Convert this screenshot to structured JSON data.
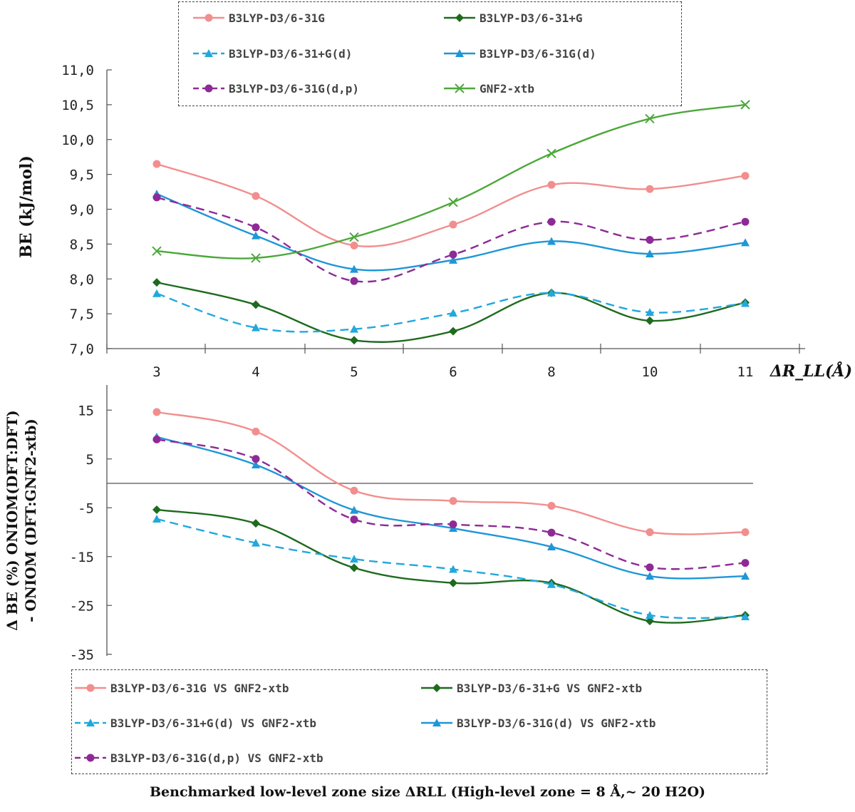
{
  "chart_data": [
    {
      "type": "line",
      "categories": [
        "3",
        "4",
        "5",
        "6",
        "8",
        "10",
        "11"
      ],
      "ylabel": "BE (kJ/mol)",
      "xlabel": "ΔR_LL(Å)",
      "ylim": [
        7.0,
        11.0
      ],
      "yticks": [
        "7,0",
        "7,5",
        "8,0",
        "8,5",
        "9,0",
        "9,5",
        "10,0",
        "10,5",
        "11,0"
      ],
      "legend_position": "top-center",
      "series": [
        {
          "name": "B3LYP-D3/6-31G",
          "color": "#f28e8e",
          "marker": "circle",
          "dash": false,
          "values": [
            9.65,
            9.19,
            8.48,
            8.78,
            9.35,
            9.29,
            9.48
          ]
        },
        {
          "name": "B3LYP-D3/6-31+G",
          "color": "#1e6b1e",
          "marker": "diamond",
          "dash": false,
          "values": [
            7.95,
            7.63,
            7.12,
            7.25,
            7.8,
            7.4,
            7.66
          ]
        },
        {
          "name": "B3LYP-D3/6-31+G(d)",
          "color": "#22a8dc",
          "marker": "triangle",
          "dash": true,
          "values": [
            7.79,
            7.3,
            7.28,
            7.51,
            7.8,
            7.52,
            7.65
          ]
        },
        {
          "name": "B3LYP-D3/6-31G(d)",
          "color": "#1e96d8",
          "marker": "triangle",
          "dash": false,
          "values": [
            9.22,
            8.62,
            8.14,
            8.27,
            8.54,
            8.36,
            8.52
          ]
        },
        {
          "name": "B3LYP-D3/6-31G(d,p)",
          "color": "#8e2a96",
          "marker": "circle",
          "dash": true,
          "values": [
            9.17,
            8.74,
            7.97,
            8.35,
            8.82,
            8.56,
            8.82
          ]
        },
        {
          "name": "GNF2-xtb",
          "color": "#4ca83a",
          "marker": "x",
          "dash": false,
          "values": [
            8.4,
            8.3,
            8.6,
            9.1,
            9.8,
            10.3,
            10.5
          ]
        }
      ]
    },
    {
      "type": "line",
      "categories": [
        "3",
        "4",
        "5",
        "6",
        "8",
        "10",
        "11"
      ],
      "ylabel_line1": "Δ BE (%) ONIOM(DFT:DFT)",
      "ylabel_line2": "- ONIOM (DFT:GNF2-xtb)",
      "xlabel": "Benchmarked low-level zone size ΔRLL (High-level zone = 8 Å,~ 20 H2O)",
      "ylim": [
        -35,
        20
      ],
      "yticks": [
        "-35",
        "-25",
        "-15",
        "-5",
        "5",
        "15"
      ],
      "legend_position": "bottom",
      "series": [
        {
          "name": "B3LYP-D3/6-31G VS GNF2-xtb",
          "color": "#f28e8e",
          "marker": "circle",
          "dash": false,
          "values": [
            14.6,
            10.6,
            -1.5,
            -3.6,
            -4.6,
            -10.0,
            -10.0
          ]
        },
        {
          "name": "B3LYP-D3/6-31+G VS GNF2-xtb",
          "color": "#1e6b1e",
          "marker": "diamond",
          "dash": false,
          "values": [
            -5.4,
            -8.2,
            -17.3,
            -20.4,
            -20.4,
            -28.2,
            -27.0
          ]
        },
        {
          "name": "B3LYP-D3/6-31+G(d) VS GNF2-xtb",
          "color": "#22a8dc",
          "marker": "triangle",
          "dash": true,
          "values": [
            -7.3,
            -12.2,
            -15.5,
            -17.6,
            -20.7,
            -27.0,
            -27.3
          ]
        },
        {
          "name": "B3LYP-D3/6-31G(d) VS GNF2-xtb",
          "color": "#1e96d8",
          "marker": "triangle",
          "dash": false,
          "values": [
            9.5,
            3.8,
            -5.5,
            -9.2,
            -13.0,
            -19.0,
            -19.0
          ]
        },
        {
          "name": "B3LYP-D3/6-31G(d,p) VS GNF2-xtb",
          "color": "#8e2a96",
          "marker": "circle",
          "dash": true,
          "values": [
            9.0,
            5.0,
            -7.4,
            -8.4,
            -10.1,
            -17.2,
            -16.3
          ]
        }
      ]
    }
  ]
}
